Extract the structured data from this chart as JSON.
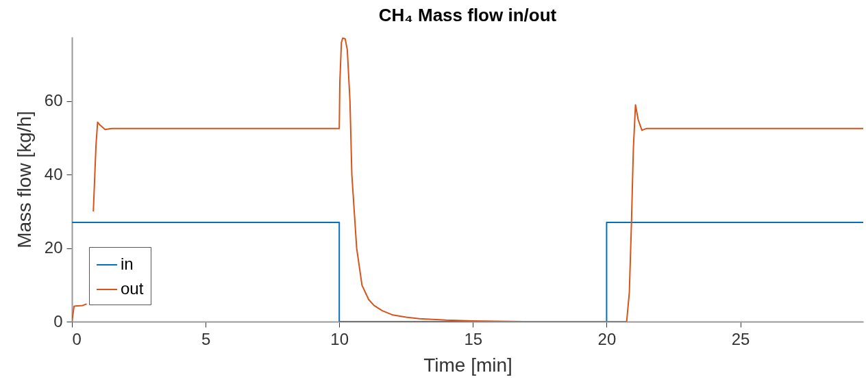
{
  "chart_data": {
    "type": "line",
    "title": "CH₄ Mass flow in/out",
    "xlabel": "Time [min]",
    "ylabel": "Mass flow [kg/h]",
    "xlim": [
      0,
      29.6
    ],
    "ylim": [
      0,
      77.5
    ],
    "xticks": [
      0,
      5,
      10,
      15,
      20,
      25
    ],
    "yticks": [
      0,
      20,
      40,
      60
    ],
    "grid": false,
    "legend": "bottom left",
    "line_style": "solid",
    "marker": "none",
    "series": [
      {
        "name": "in",
        "color": "#0072bd",
        "x": [
          0,
          10,
          10,
          20,
          20,
          29.6
        ],
        "values": [
          27,
          27,
          0,
          0,
          27,
          27
        ]
      },
      {
        "name": "out",
        "color": "#d95319",
        "x": [
          0,
          0.08,
          0.2,
          0.4,
          0.55,
          0.7,
          0.8,
          0.9,
          0.96,
          1.05,
          1.24,
          1.5,
          10.0,
          10.02,
          10.08,
          10.13,
          10.22,
          10.3,
          10.4,
          10.47,
          10.65,
          10.85,
          11.1,
          11.3,
          11.6,
          12.0,
          12.5,
          13,
          14,
          15,
          17,
          20.75,
          20.85,
          20.93,
          21.0,
          21.08,
          21.18,
          21.32,
          21.5,
          29.6
        ],
        "values": [
          0,
          4.2,
          4.3,
          4.4,
          4.8,
          null,
          30,
          48,
          54.3,
          53.5,
          52.3,
          52.6,
          52.6,
          65,
          76,
          77.2,
          77,
          74,
          60,
          40,
          20,
          9.9,
          6,
          4.4,
          3,
          1.8,
          1.2,
          0.8,
          0.4,
          0.2,
          0,
          0,
          8,
          27,
          47,
          59,
          55,
          52.1,
          52.6,
          52.6
        ]
      }
    ]
  }
}
